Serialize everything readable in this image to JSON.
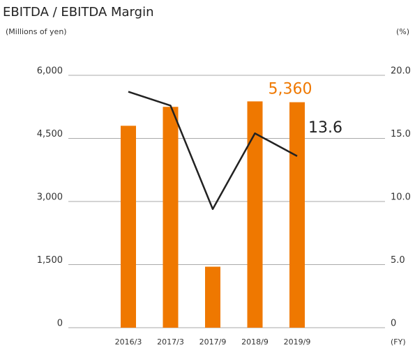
{
  "chart_data": {
    "type": "bar_line",
    "title": "EBITDA / EBITDA Margin",
    "y_label": "(Millions of yen)",
    "y2_label": "(%)",
    "x_label": "(FY)",
    "categories": [
      "2016/3",
      "2017/3",
      "2017/9",
      "2018/9",
      "2019/9"
    ],
    "series": [
      {
        "name": "EBITDA",
        "type": "bar",
        "color": "#ef7800",
        "values": [
          4800,
          5250,
          1450,
          5380,
          5360
        ],
        "value_labels": [
          null,
          null,
          null,
          null,
          "5,360"
        ]
      },
      {
        "name": "EBITDA Margin",
        "type": "line",
        "axis": "y2",
        "color": "#222222",
        "values": [
          18.7,
          17.6,
          9.4,
          15.4,
          13.6
        ],
        "value_labels": [
          null,
          null,
          null,
          null,
          "13.6"
        ]
      }
    ],
    "ylim": [
      0,
      6000
    ],
    "yticks": [
      0,
      {
        "value": 1500,
        "label": "1,500"
      },
      {
        "value": 3000,
        "label": "3,000"
      },
      {
        "value": 4500,
        "label": "4,500"
      },
      {
        "value": 6000,
        "label": "6,000"
      }
    ],
    "y2lim": [
      0,
      20
    ],
    "y2ticks": [
      0,
      {
        "value": 5,
        "label": "5.0"
      },
      {
        "value": 10,
        "label": "10.0"
      },
      {
        "value": 15,
        "label": "15.0"
      },
      {
        "value": 20,
        "label": "20.0"
      }
    ],
    "grid": true
  }
}
